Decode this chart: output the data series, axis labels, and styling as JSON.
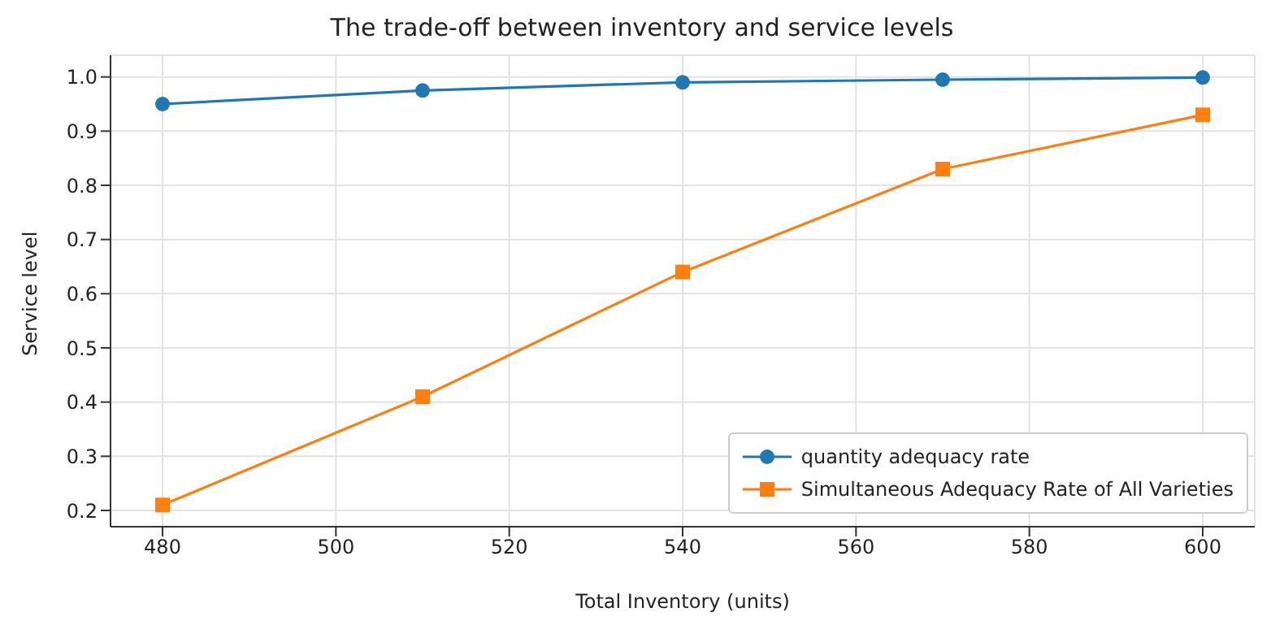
{
  "chart_data": {
    "type": "line",
    "title": "The trade-off between inventory and service levels",
    "xlabel": "Total Inventory (units)",
    "ylabel": "Service level",
    "x": [
      480,
      510,
      540,
      570,
      600
    ],
    "series": [
      {
        "name": "quantity adequacy rate",
        "color": "#1f77b4",
        "marker": "circle",
        "values": [
          0.95,
          0.975,
          0.99,
          0.995,
          0.999
        ]
      },
      {
        "name": "Simultaneous Adequacy Rate of All Varieties",
        "color": "#ff7f0e",
        "marker": "square",
        "values": [
          0.21,
          0.41,
          0.64,
          0.83,
          0.93
        ]
      }
    ],
    "xlim": [
      474,
      606
    ],
    "xticks": [
      480,
      500,
      520,
      540,
      560,
      580,
      600
    ],
    "ylim": [
      0.17,
      1.04
    ],
    "yticks": [
      0.2,
      0.3,
      0.4,
      0.5,
      0.6,
      0.7,
      0.8,
      0.9,
      {
        "value": 1,
        "label": "1.0"
      }
    ],
    "grid": true,
    "legend": "bottom right",
    "line_style": "solid"
  }
}
